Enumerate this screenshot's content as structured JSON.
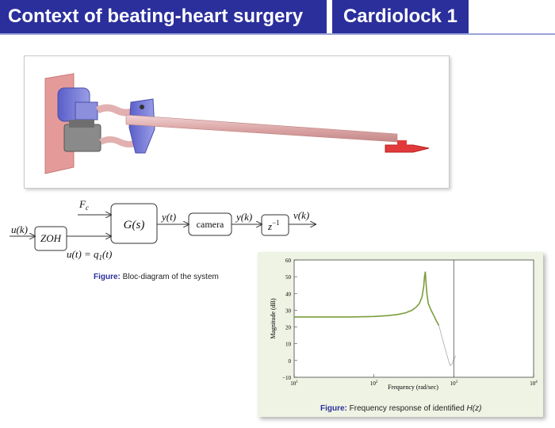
{
  "header": {
    "title": "Context of beating-heart surgery",
    "subtitle": "Cardiolock 1"
  },
  "diagram": {
    "input_signal": "u(k)",
    "hold_block": "ZOH",
    "force_label": "F",
    "force_subscript": "c",
    "plant_block": "G(s)",
    "plant_input": "u(t) = q",
    "plant_input_subscript": "1",
    "plant_input_tail": "(t)",
    "continuous_output": "y(t)",
    "camera_block": "camera",
    "sampled_output": "y(k)",
    "delay_block": "z",
    "delay_exponent": "−1",
    "final_output": "v(k)"
  },
  "captions": {
    "figure_word": "Figure:",
    "diagram_caption": "Bloc-diagram of the system",
    "plot_caption_prefix": "Frequency response of identified",
    "plot_caption_symbol": "H(z)"
  },
  "chart_data": {
    "type": "line",
    "title": "",
    "xlabel": "Frequency  (rad/sec)",
    "ylabel": "Magnitude (dB)",
    "xscale": "log",
    "xlim": [
      10,
      10000
    ],
    "ylim": [
      -10,
      60
    ],
    "x_tick_labels": [
      "10^1",
      "10^2",
      "10^3",
      "10^4"
    ],
    "y_tick_labels": [
      "−10",
      "0",
      "10",
      "20",
      "30",
      "40",
      "50",
      "60"
    ],
    "grid": false,
    "vertical_marker_x": 1000,
    "series": [
      {
        "color": "#7a9e3a",
        "x": [
          10,
          20,
          50,
          100,
          150,
          200,
          250,
          300,
          340,
          370,
          400,
          420,
          430,
          440,
          450,
          460,
          480,
          520,
          560,
          600,
          650
        ],
        "y": [
          26,
          26,
          26,
          26.3,
          26.8,
          27.5,
          28.5,
          30,
          32,
          34,
          38,
          44,
          50,
          53,
          46,
          40,
          34,
          30,
          27,
          24,
          21
        ]
      },
      {
        "color": "#a8a8a8",
        "x": [
          650,
          720,
          800,
          860,
          900,
          950,
          1000,
          1060
        ],
        "y": [
          21,
          13,
          5,
          0,
          -3,
          -2,
          0.5,
          3
        ]
      }
    ]
  },
  "colors": {
    "title_background": "#2b2f9c",
    "caption_accent": "#2b2f9c",
    "plot_panel": "#eef3e3",
    "response_curve": "#7a9e3a"
  }
}
